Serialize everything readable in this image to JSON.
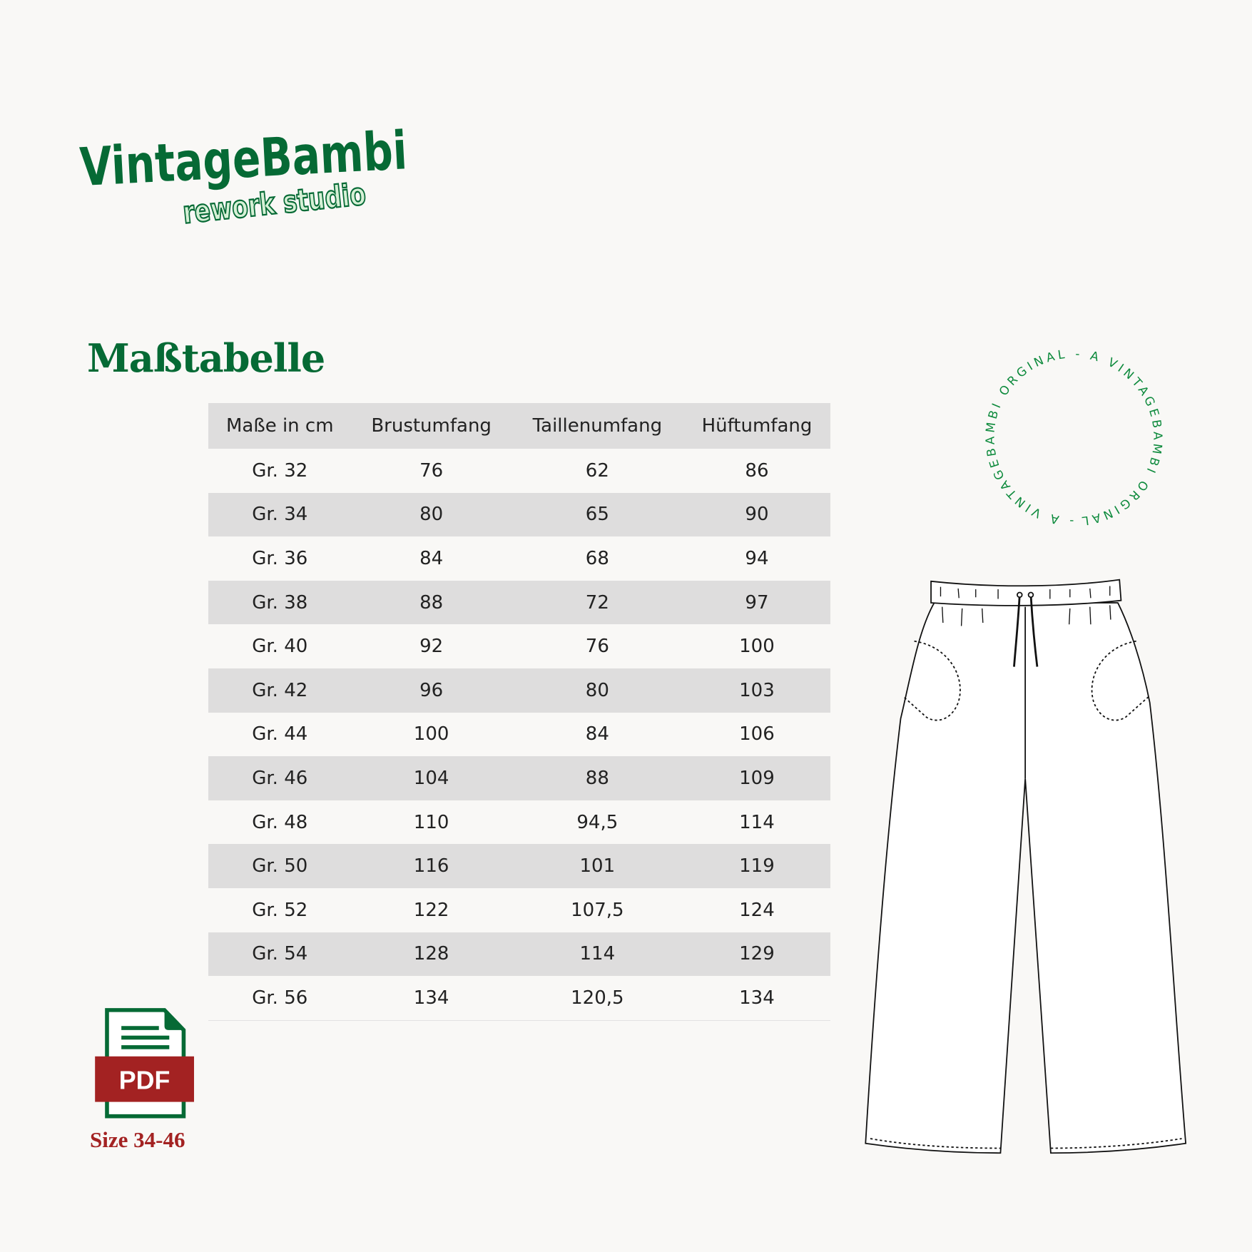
{
  "logo": {
    "main": "VintageBambi",
    "sub": "rework studio"
  },
  "title": "Maßtabelle",
  "stamp_text": "- A VINTAGEBAMBI ORGINAL - A VINTAGEBAMBI ORGINAL ",
  "table": {
    "headers": [
      "Maße in cm",
      "Brustumfang",
      "Taillenumfang",
      "Hüftumfang"
    ],
    "rows": [
      [
        "Gr. 32",
        "76",
        "62",
        "86"
      ],
      [
        "Gr. 34",
        "80",
        "65",
        "90"
      ],
      [
        "Gr. 36",
        "84",
        "68",
        "94"
      ],
      [
        "Gr. 38",
        "88",
        "72",
        "97"
      ],
      [
        "Gr. 40",
        "92",
        "76",
        "100"
      ],
      [
        "Gr. 42",
        "96",
        "80",
        "103"
      ],
      [
        "Gr. 44",
        "100",
        "84",
        "106"
      ],
      [
        "Gr. 46",
        "104",
        "88",
        "109"
      ],
      [
        "Gr. 48",
        "110",
        "94,5",
        "114"
      ],
      [
        "Gr. 50",
        "116",
        "101",
        "119"
      ],
      [
        "Gr. 52",
        "122",
        "107,5",
        "124"
      ],
      [
        "Gr. 54",
        "128",
        "114",
        "129"
      ],
      [
        "Gr. 56",
        "134",
        "120,5",
        "134"
      ]
    ]
  },
  "pdf": {
    "label": "PDF",
    "size_label": "Size 34-46",
    "icon": "pdf-file-icon"
  },
  "colors": {
    "green": "#066a35",
    "light_green": "#d6f0d6",
    "red": "#a32222",
    "row_alt": "#dedddd"
  }
}
